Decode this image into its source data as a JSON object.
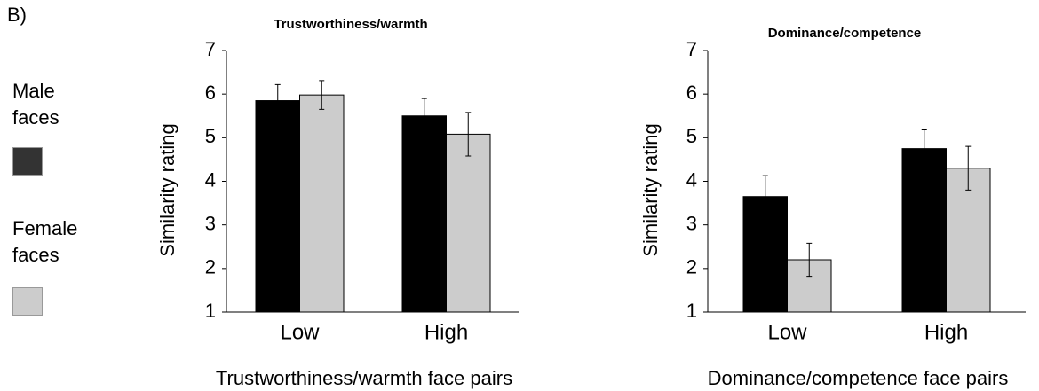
{
  "panel_label": "B)",
  "chart_data": [
    {
      "type": "bar",
      "title": "Trustworthiness/warmth",
      "xlabel": "Trustworthiness/warmth face pairs",
      "ylabel": "Similarity rating",
      "categories": [
        "Low",
        "High"
      ],
      "series": [
        {
          "name": "Male faces",
          "color": "#000000",
          "values": [
            5.85,
            5.5
          ],
          "errors": [
            0.37,
            0.4
          ]
        },
        {
          "name": "Female faces",
          "color": "#cccccc",
          "values": [
            5.98,
            5.08
          ],
          "errors": [
            0.33,
            0.5
          ]
        }
      ],
      "ylim": [
        1,
        7
      ],
      "yticks": [
        1,
        2,
        3,
        4,
        5,
        6,
        7
      ]
    },
    {
      "type": "bar",
      "title": "Dominance/competence",
      "xlabel": "Dominance/competence face pairs",
      "ylabel": "Similarity rating",
      "categories": [
        "Low",
        "High"
      ],
      "series": [
        {
          "name": "Male faces",
          "color": "#000000",
          "values": [
            3.65,
            4.75
          ],
          "errors": [
            0.48,
            0.43
          ]
        },
        {
          "name": "Female faces",
          "color": "#cccccc",
          "values": [
            2.2,
            4.3
          ],
          "errors": [
            0.38,
            0.5
          ]
        }
      ],
      "ylim": [
        1,
        7
      ],
      "yticks": [
        1,
        2,
        3,
        4,
        5,
        6,
        7
      ]
    }
  ]
}
